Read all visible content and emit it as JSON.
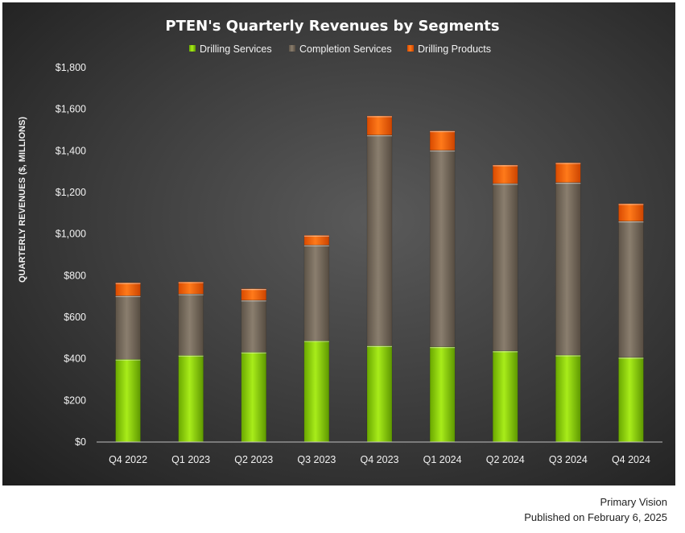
{
  "chart_data": {
    "type": "bar",
    "stacked": true,
    "title": "PTEN's Quarterly Revenues by Segments",
    "ylabel": "QUARTERLY REVENUES ($, MILLIONS)",
    "xlabel": "",
    "ylim": [
      0,
      1800
    ],
    "y_ticks": [
      "$0",
      "$200",
      "$400",
      "$600",
      "$800",
      "$1,000",
      "$1,200",
      "$1,400",
      "$1,600",
      "$1,800"
    ],
    "legend_position": "top",
    "grid": false,
    "categories": [
      "Q4 2022",
      "Q1 2023",
      "Q2 2023",
      "Q3 2023",
      "Q4 2023",
      "Q1 2024",
      "Q2 2024",
      "Q3 2024",
      "Q4 2024"
    ],
    "series": [
      {
        "name": "Drilling Services",
        "color": "#8fd400",
        "values": [
          398,
          417,
          432,
          487,
          463,
          458,
          438,
          418,
          407
        ]
      },
      {
        "name": "Completion Services",
        "color": "#756a5c",
        "values": [
          305,
          295,
          250,
          460,
          1013,
          945,
          805,
          830,
          655
        ]
      },
      {
        "name": "Drilling Products",
        "color": "#f25c05",
        "values": [
          63,
          58,
          55,
          47,
          92,
          93,
          89,
          95,
          84
        ]
      }
    ]
  },
  "footer": {
    "source": "Primary Vision",
    "published": "Published on February 6, 2025"
  }
}
